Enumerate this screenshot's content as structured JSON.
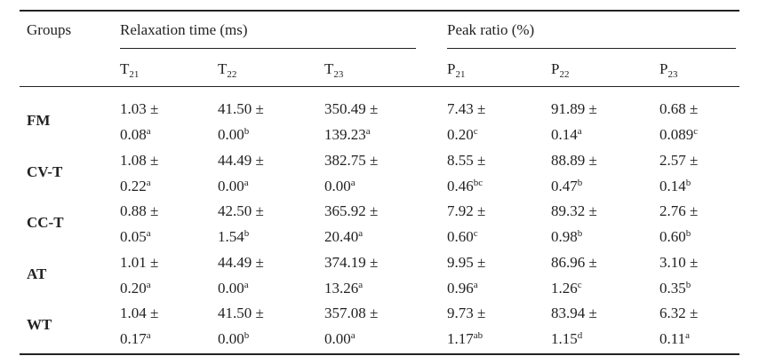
{
  "table": {
    "header": {
      "groups": "Groups",
      "relaxation": "Relaxation time (ms)",
      "peak": "Peak ratio (%)"
    },
    "columns": [
      {
        "base": "T",
        "sub": "21"
      },
      {
        "base": "T",
        "sub": "22"
      },
      {
        "base": "T",
        "sub": "23"
      },
      {
        "base": "P",
        "sub": "21"
      },
      {
        "base": "P",
        "sub": "22"
      },
      {
        "base": "P",
        "sub": "23"
      }
    ],
    "rows": [
      {
        "group": "FM",
        "cells": [
          {
            "mean": "1.03 ±",
            "sd": "0.08",
            "sup": "a"
          },
          {
            "mean": "41.50 ±",
            "sd": "0.00",
            "sup": "b"
          },
          {
            "mean": "350.49 ±",
            "sd": "139.23",
            "sup": "a"
          },
          {
            "mean": "7.43 ±",
            "sd": "0.20",
            "sup": "c"
          },
          {
            "mean": "91.89 ±",
            "sd": "0.14",
            "sup": "a"
          },
          {
            "mean": "0.68 ±",
            "sd": "0.089",
            "sup": "c"
          }
        ]
      },
      {
        "group": "CV-T",
        "cells": [
          {
            "mean": "1.08 ±",
            "sd": "0.22",
            "sup": "a"
          },
          {
            "mean": "44.49 ±",
            "sd": "0.00",
            "sup": "a"
          },
          {
            "mean": "382.75 ±",
            "sd": "0.00",
            "sup": "a"
          },
          {
            "mean": "8.55 ±",
            "sd": "0.46",
            "sup": "bc"
          },
          {
            "mean": "88.89 ±",
            "sd": "0.47",
            "sup": "b"
          },
          {
            "mean": "2.57 ±",
            "sd": "0.14",
            "sup": "b"
          }
        ]
      },
      {
        "group": "CC-T",
        "cells": [
          {
            "mean": "0.88 ±",
            "sd": "0.05",
            "sup": "a"
          },
          {
            "mean": "42.50 ±",
            "sd": "1.54",
            "sup": "b"
          },
          {
            "mean": "365.92 ±",
            "sd": "20.40",
            "sup": "a"
          },
          {
            "mean": "7.92 ±",
            "sd": "0.60",
            "sup": "c"
          },
          {
            "mean": "89.32 ±",
            "sd": "0.98",
            "sup": "b"
          },
          {
            "mean": "2.76 ±",
            "sd": "0.60",
            "sup": "b"
          }
        ]
      },
      {
        "group": "AT",
        "cells": [
          {
            "mean": "1.01 ±",
            "sd": "0.20",
            "sup": "a"
          },
          {
            "mean": "44.49 ±",
            "sd": "0.00",
            "sup": "a"
          },
          {
            "mean": "374.19 ±",
            "sd": "13.26",
            "sup": "a"
          },
          {
            "mean": "9.95 ±",
            "sd": "0.96",
            "sup": "a"
          },
          {
            "mean": "86.96 ±",
            "sd": "1.26",
            "sup": "c"
          },
          {
            "mean": "3.10 ±",
            "sd": "0.35",
            "sup": "b"
          }
        ]
      },
      {
        "group": "WT",
        "cells": [
          {
            "mean": "1.04 ±",
            "sd": "0.17",
            "sup": "a"
          },
          {
            "mean": "41.50 ±",
            "sd": "0.00",
            "sup": "b"
          },
          {
            "mean": "357.08 ±",
            "sd": "0.00",
            "sup": "a"
          },
          {
            "mean": "9.73 ±",
            "sd": "1.17",
            "sup": "ab"
          },
          {
            "mean": "83.94 ±",
            "sd": "1.15",
            "sup": "d"
          },
          {
            "mean": "6.32 ±",
            "sd": "0.11",
            "sup": "a"
          }
        ]
      }
    ]
  }
}
